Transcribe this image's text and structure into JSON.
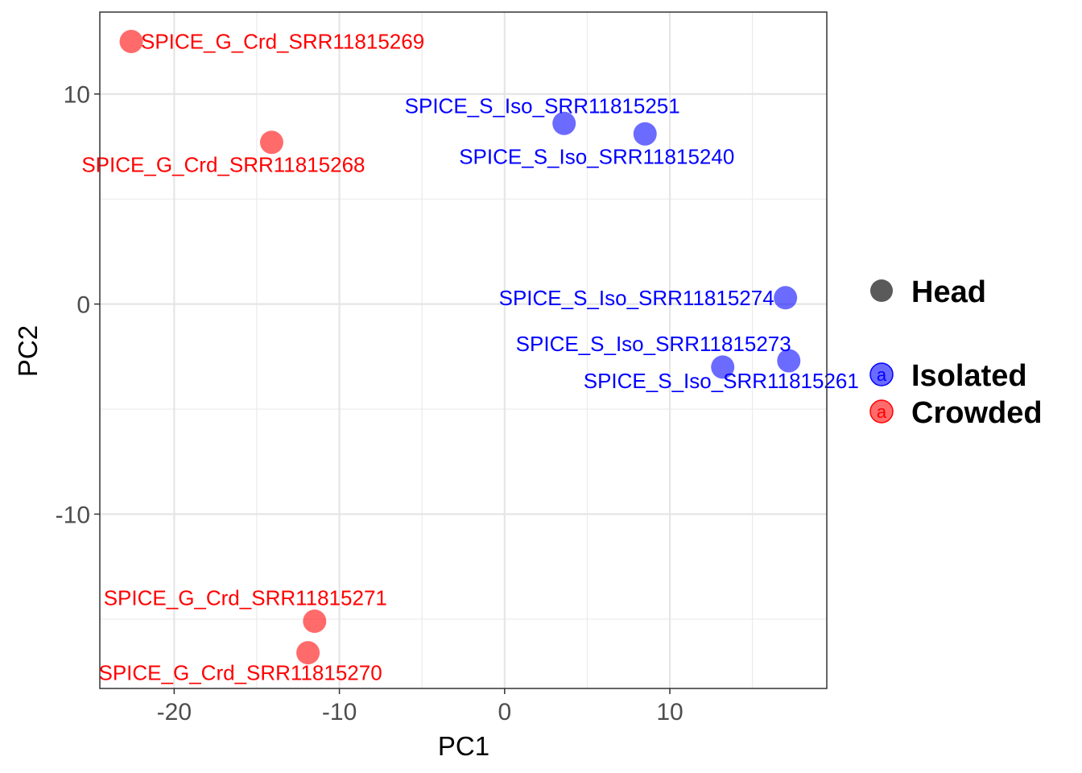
{
  "chart_data": {
    "type": "scatter",
    "xlabel": "PC1",
    "ylabel": "PC2",
    "xlim": [
      -24.5,
      19.5
    ],
    "ylim": [
      -18.3,
      13.9
    ],
    "x_ticks": [
      -20,
      -10,
      0,
      10
    ],
    "x_tick_labels": [
      "-20",
      "-10",
      "0",
      "10"
    ],
    "y_ticks": [
      -10,
      0,
      10
    ],
    "y_tick_labels": [
      "-10",
      "0",
      "10"
    ],
    "grid": true,
    "legend_position": "right",
    "colors": {
      "Isolated": "#0000ff",
      "Crowded": "#ff0000"
    },
    "legend": {
      "shape_title": "Head",
      "groups": [
        {
          "name": "Isolated",
          "key": "a"
        },
        {
          "name": "Crowded",
          "key": "a"
        }
      ]
    },
    "points": [
      {
        "label": "SPICE_G_Crd_SRR11815269",
        "group": "Crowded",
        "x": -22.6,
        "y": 12.5,
        "label_pos": "right"
      },
      {
        "label": "SPICE_G_Crd_SRR11815268",
        "group": "Crowded",
        "x": -14.1,
        "y": 7.7,
        "label_pos": "below"
      },
      {
        "label": "SPICE_S_Iso_SRR11815251",
        "group": "Isolated",
        "x": 3.6,
        "y": 8.6,
        "label_pos": "above-left"
      },
      {
        "label": "SPICE_S_Iso_SRR11815240",
        "group": "Isolated",
        "x": 8.5,
        "y": 8.1,
        "label_pos": "below"
      },
      {
        "label": "SPICE_S_Iso_SRR11815274",
        "group": "Isolated",
        "x": 17.0,
        "y": 0.3,
        "label_pos": "left"
      },
      {
        "label": "SPICE_S_Iso_SRR11815273",
        "group": "Isolated",
        "x": 13.2,
        "y": -3.0,
        "label_pos": "above"
      },
      {
        "label": "SPICE_S_Iso_SRR11815261",
        "group": "Isolated",
        "x": 17.2,
        "y": -2.7,
        "label_pos": "below-left"
      },
      {
        "label": "SPICE_G_Crd_SRR11815271",
        "group": "Crowded",
        "x": -11.5,
        "y": -15.1,
        "label_pos": "above"
      },
      {
        "label": "SPICE_G_Crd_SRR11815270",
        "group": "Crowded",
        "x": -11.9,
        "y": -16.6,
        "label_pos": "below-left"
      }
    ]
  }
}
